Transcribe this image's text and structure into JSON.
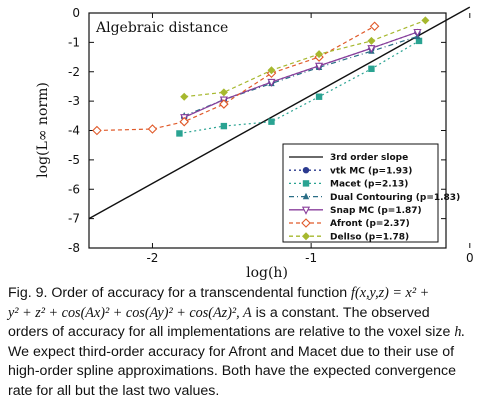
{
  "chart_data": {
    "type": "line",
    "title": "Algebraic distance",
    "xlabel": "log(h)",
    "ylabel": "log(L∞ norm)",
    "xlim": [
      -2.4,
      -0.15
    ],
    "ylim": [
      -8,
      0
    ],
    "xticks": [
      -2,
      -1,
      0
    ],
    "xtick_labels": [
      "-2",
      "-1",
      "0"
    ],
    "yticks": [
      0,
      -1,
      -2,
      -3,
      -4,
      -5,
      -6,
      -7,
      -8
    ],
    "ytick_labels": [
      "0",
      "-1",
      "-2",
      "-3",
      "-4",
      "-5",
      "-6",
      "-7",
      "-8"
    ],
    "legend_position": "bottom-right",
    "series": [
      {
        "name": "3rd order slope",
        "color": "#111111",
        "dash": "",
        "marker": "none",
        "x": [
          -2.4,
          0
        ],
        "y": [
          -7.0,
          0.2
        ]
      },
      {
        "name": "vtk MC (p=1.93)",
        "color": "#2b3a8f",
        "dash": "2,3",
        "marker": "circle",
        "x": [
          -1.8,
          -1.55,
          -1.25,
          -0.95,
          -0.62,
          -0.33
        ],
        "y": [
          -3.55,
          -2.95,
          -2.35,
          -1.8,
          -1.2,
          -0.65
        ]
      },
      {
        "name": "Macet (p=2.13)",
        "color": "#2aa392",
        "dash": "2,3",
        "marker": "square",
        "x": [
          -1.83,
          -1.55,
          -1.25,
          -0.95,
          -0.62,
          -0.32
        ],
        "y": [
          -4.1,
          -3.85,
          -3.7,
          -2.85,
          -1.9,
          -0.95
        ]
      },
      {
        "name": "Dual Contouring (p=1.83)",
        "color": "#2a6e86",
        "dash": "5,3,1,3",
        "marker": "triangle",
        "x": [
          -1.8,
          -1.55,
          -1.25,
          -0.95,
          -0.62,
          -0.33
        ],
        "y": [
          -3.5,
          -2.95,
          -2.4,
          -1.85,
          -1.3,
          -0.8
        ]
      },
      {
        "name": "Snap MC (p=1.87)",
        "color": "#8a3f9c",
        "dash": "",
        "marker": "triangle-down",
        "x": [
          -1.8,
          -1.55,
          -1.25,
          -0.95,
          -0.62,
          -0.33
        ],
        "y": [
          -3.55,
          -2.95,
          -2.35,
          -1.8,
          -1.2,
          -0.65
        ]
      },
      {
        "name": "Afront (p=2.37)",
        "color": "#e05a2a",
        "dash": "4,3",
        "marker": "diamond-open",
        "x": [
          -2.35,
          -2.0,
          -1.8,
          -1.55,
          -1.25,
          -0.95,
          -0.6
        ],
        "y": [
          -4.0,
          -3.95,
          -3.7,
          -3.1,
          -2.05,
          -1.5,
          -0.45
        ]
      },
      {
        "name": "DelIso (p=1.78)",
        "color": "#a6b82e",
        "dash": "4,3",
        "marker": "diamond",
        "x": [
          -1.8,
          -1.55,
          -1.25,
          -0.95,
          -0.62,
          -0.28
        ],
        "y": [
          -2.85,
          -2.7,
          -1.95,
          -1.4,
          -0.95,
          -0.25
        ]
      }
    ]
  },
  "caption": {
    "l1a": "Fig. 9.  Order of accuracy for a transcendental function ",
    "l1m": "f(x,y,z) = x² +",
    "l2m": "y² + z² + cos(Ax)² + cos(Ay)² + cos(Az)², A",
    "l2b": " is a constant.  The observed",
    "l3a": "orders of accuracy for all implementations are relative to the voxel size ",
    "l3m": "h.",
    "l4": "We expect third-order accuracy for Afront and Macet due to their use of",
    "l5": "high-order spline approximations. Both have the expected convergence",
    "l6": "rate for all but the last two values."
  }
}
